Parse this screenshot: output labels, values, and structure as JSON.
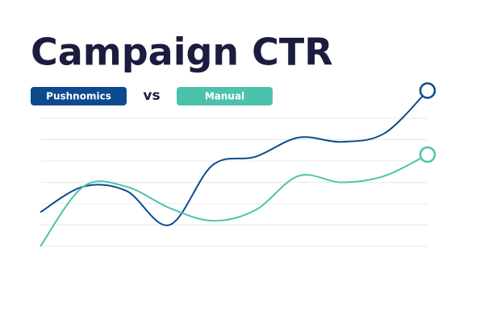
{
  "chart_data": {
    "type": "line",
    "title": "Campaign CTR",
    "legend_joiner": "vs",
    "x": [
      0,
      1,
      2,
      3,
      4,
      5,
      6,
      7,
      8,
      9
    ],
    "xlim": [
      0,
      9
    ],
    "ylim": [
      0,
      7.5
    ],
    "grid_lines": [
      0,
      1,
      2,
      3,
      4,
      5,
      6
    ],
    "series": [
      {
        "name": "Pushnomics",
        "color": "#0d4a8f",
        "values": [
          1.6,
          2.8,
          2.6,
          1.0,
          3.8,
          4.2,
          5.1,
          4.9,
          5.3,
          7.3
        ]
      },
      {
        "name": "Manual",
        "color": "#4cc2ad",
        "values": [
          0,
          2.8,
          2.8,
          1.8,
          1.2,
          1.7,
          3.3,
          3.0,
          3.3,
          4.3
        ]
      }
    ]
  }
}
